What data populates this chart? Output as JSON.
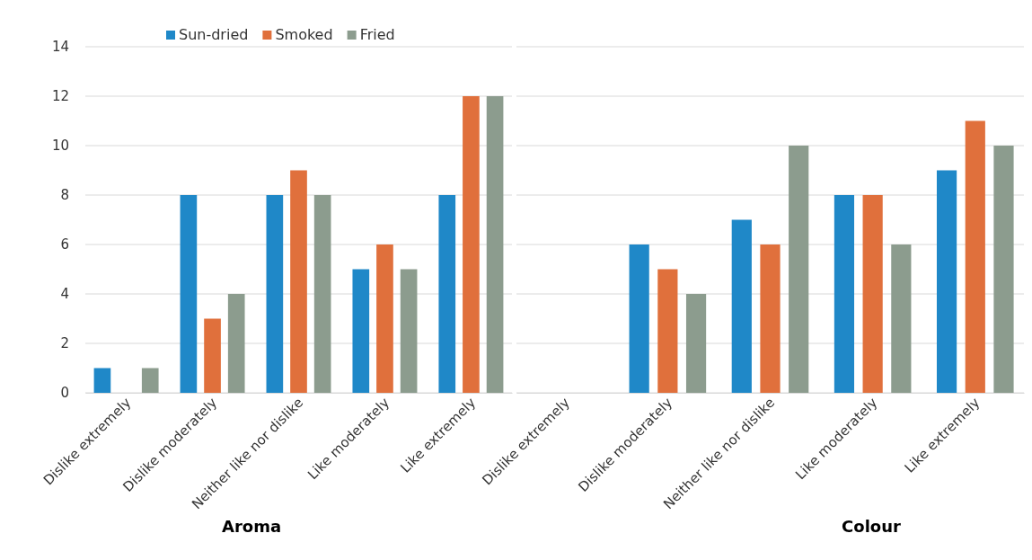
{
  "chart_data": [
    {
      "type": "bar",
      "xlabel": "Aroma",
      "categories": [
        "Dislike extremely",
        "Dislike moderately",
        "Neither like nor dislike",
        "Like moderately",
        "Like extremely"
      ],
      "ylim": [
        0,
        14
      ],
      "yticks": [
        0,
        2,
        4,
        6,
        8,
        10,
        12,
        14
      ],
      "grid": "y",
      "legend": "top left",
      "series": [
        {
          "name": "Sun-dried",
          "color": "#1f88c8",
          "values": [
            1,
            8,
            8,
            5,
            8
          ]
        },
        {
          "name": "Smoked",
          "color": "#e0703c",
          "values": [
            0,
            3,
            9,
            6,
            12
          ]
        },
        {
          "name": "Fried",
          "color": "#8c9c8e",
          "values": [
            1,
            4,
            8,
            5,
            12
          ]
        }
      ]
    },
    {
      "type": "bar",
      "xlabel": "Colour",
      "categories": [
        "Dislike extremely",
        "Dislike moderately",
        "Neither like nor dislike",
        "Like moderately",
        "Like extremely"
      ],
      "ylim": [
        0,
        14
      ],
      "yticks": [
        0,
        2,
        4,
        6,
        8,
        10,
        12,
        14
      ],
      "grid": "y",
      "tick_labels": "x",
      "series": [
        {
          "color": "#1f88c8",
          "values": [
            0,
            6,
            7,
            8,
            9
          ]
        },
        {
          "color": "#e0703c",
          "values": [
            0,
            5,
            6,
            8,
            11
          ]
        },
        {
          "color": "#8c9c8e",
          "values": [
            0,
            4,
            10,
            6,
            10
          ]
        }
      ]
    }
  ]
}
